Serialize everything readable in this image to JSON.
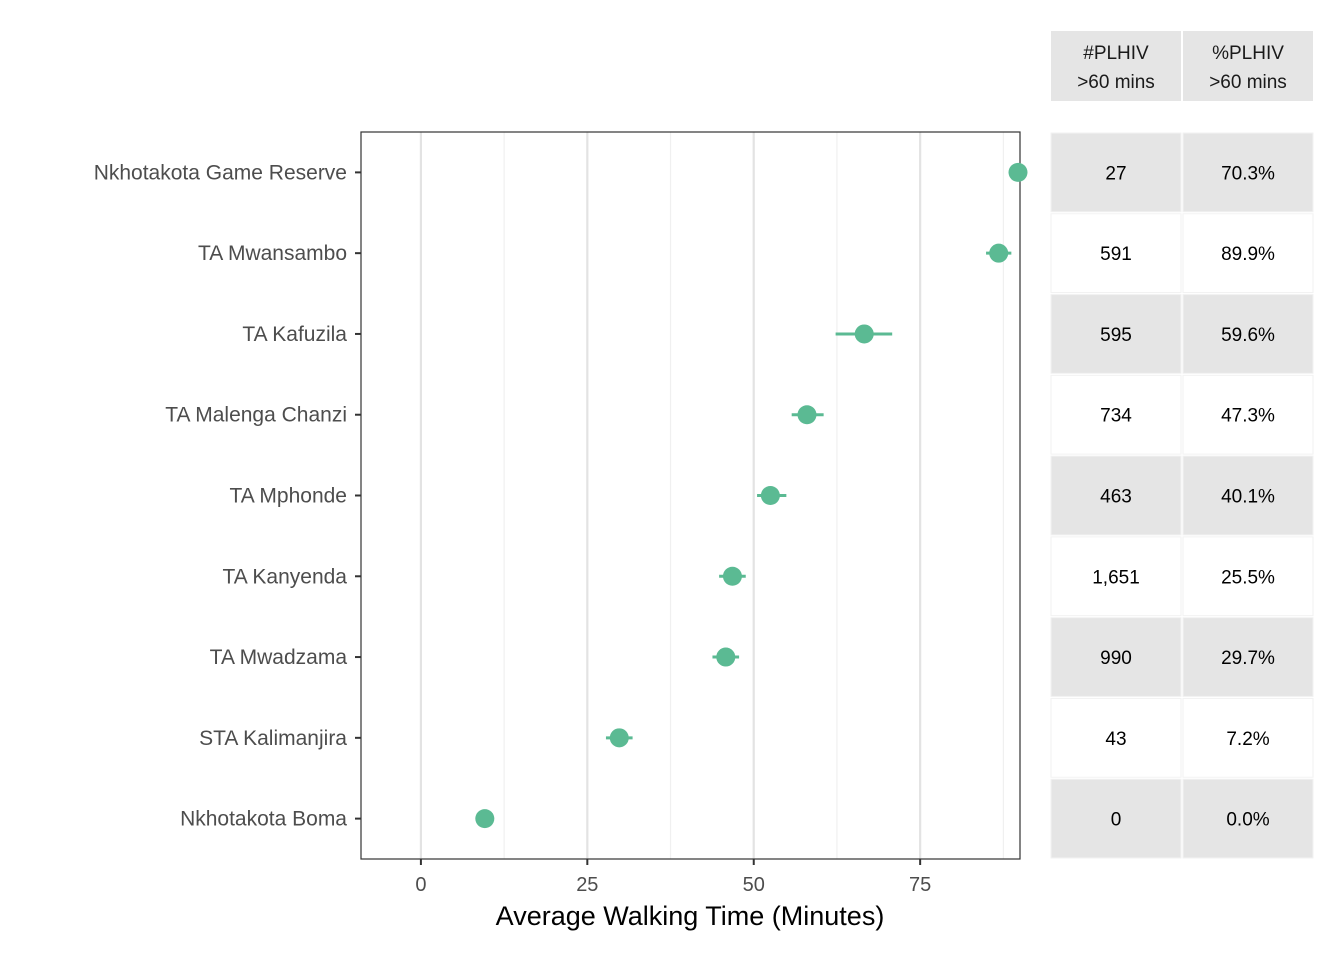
{
  "chart_data": {
    "type": "scatter",
    "subtype": "dot-with-error-bars",
    "xlabel": "Average Walking Time (Minutes)",
    "xlim": [
      -9,
      90
    ],
    "x_ticks": [
      0,
      25,
      50,
      75
    ],
    "x_tick_labels": [
      "0",
      "25",
      "50",
      "75"
    ],
    "grid": true,
    "point_color": "#5bba93",
    "categories": [
      "Nkhotakota Game Reserve",
      "TA Mwansambo",
      "TA Kafuzila",
      "TA Malenga Chanzi",
      "TA Mphonde",
      "TA Kanyenda",
      "TA Mwadzama",
      "STA Kalimanjira",
      "Nkhotakota Boma"
    ],
    "values": [
      89.7,
      86.8,
      66.6,
      58.0,
      52.5,
      46.8,
      45.8,
      29.8,
      9.6
    ],
    "ci_low": [
      89.7,
      84.9,
      62.3,
      55.7,
      50.5,
      44.8,
      43.8,
      27.8,
      9.6
    ],
    "ci_high": [
      89.7,
      88.7,
      70.8,
      60.5,
      54.9,
      48.8,
      47.8,
      31.8,
      9.6
    ],
    "table": {
      "headers": [
        [
          "#PLHIV",
          ">60 mins"
        ],
        [
          "%PLHIV",
          ">60 mins"
        ]
      ],
      "rows": [
        [
          "27",
          "70.3%"
        ],
        [
          "591",
          "89.9%"
        ],
        [
          "595",
          "59.6%"
        ],
        [
          "734",
          "47.3%"
        ],
        [
          "463",
          "40.1%"
        ],
        [
          "1,651",
          "25.5%"
        ],
        [
          "990",
          "29.7%"
        ],
        [
          "43",
          "7.2%"
        ],
        [
          "0",
          "0.0%"
        ]
      ]
    }
  }
}
